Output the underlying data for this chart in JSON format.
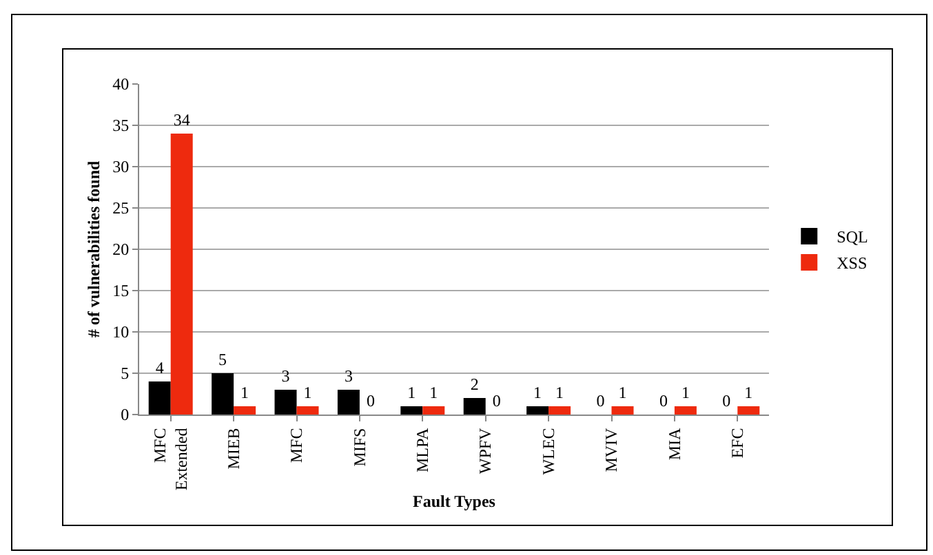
{
  "chart_data": {
    "type": "bar",
    "xlabel": "Fault Types",
    "ylabel": "# of vulnerabilities found",
    "categories": [
      "MFC Extended",
      "MIEB",
      "MFC",
      "MIFS",
      "MLPA",
      "WPFV",
      "WLEC",
      "MVIV",
      "MIA",
      "EFC"
    ],
    "series": [
      {
        "name": "SQL",
        "color": "#000000",
        "values": [
          4,
          5,
          3,
          3,
          1,
          2,
          1,
          0,
          0,
          0
        ]
      },
      {
        "name": "XSS",
        "color": "#ee2a0e",
        "values": [
          34,
          1,
          1,
          0,
          1,
          0,
          1,
          1,
          1,
          1
        ]
      }
    ],
    "ylim": [
      0,
      40
    ],
    "yticks": [
      0,
      5,
      10,
      15,
      20,
      25,
      30,
      35,
      40
    ],
    "grid": "y",
    "legend": "right",
    "data_labels": true
  }
}
